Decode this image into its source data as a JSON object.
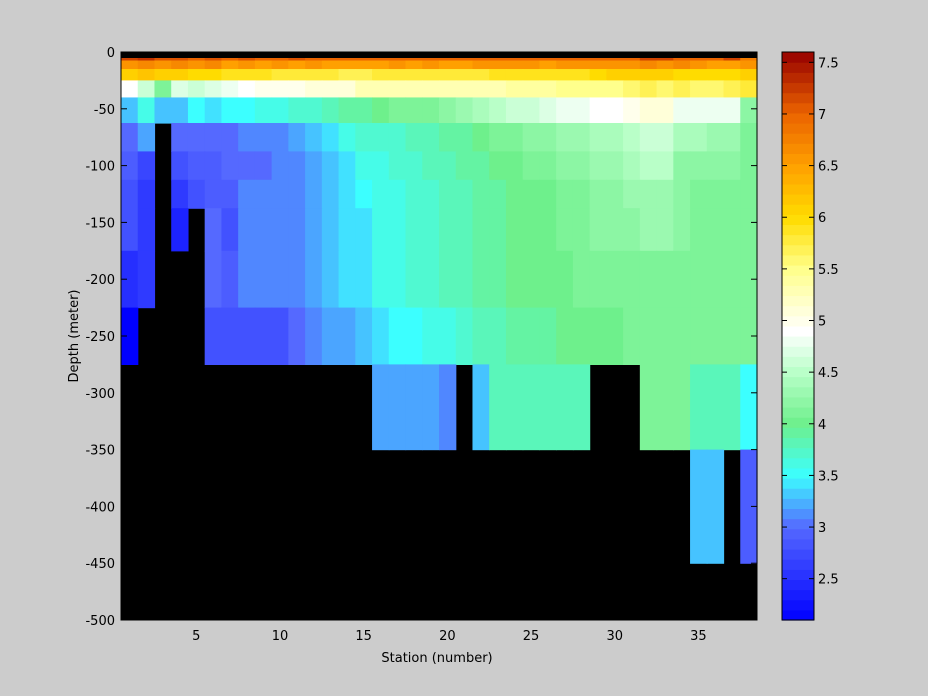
{
  "chart_data": {
    "type": "heatmap",
    "xlabel": "Station (number)",
    "ylabel": "Depth (meter)",
    "xlim": [
      1,
      38
    ],
    "ylim": [
      -500,
      0
    ],
    "xticks": [
      5,
      10,
      15,
      20,
      25,
      30,
      35
    ],
    "yticks": [
      0,
      -50,
      -100,
      -150,
      -200,
      -250,
      -300,
      -350,
      -400,
      -450,
      -500
    ],
    "colorbar": {
      "range": [
        2.1,
        7.6
      ],
      "ticks": [
        2.5,
        3,
        3.5,
        4,
        4.5,
        5,
        5.5,
        6,
        6.5,
        7,
        7.5
      ],
      "colormap": "jet-like (blue-cyan-green-white-yellow-orange-darkred)"
    },
    "missing_color": "#000000",
    "background_color": "#cccccc",
    "depth_rows": [
      -5,
      -10,
      -20,
      -30,
      -50,
      -75,
      -100,
      -125,
      -150,
      -200,
      -250,
      -300,
      -400
    ],
    "row_edges": [
      0,
      -7.5,
      -15,
      -25,
      -40,
      -62.5,
      -87.5,
      -112.5,
      -137.5,
      -175,
      -225,
      -275,
      -350,
      -450
    ],
    "stations": [
      1,
      2,
      3,
      4,
      5,
      6,
      7,
      8,
      9,
      10,
      11,
      12,
      13,
      14,
      15,
      16,
      17,
      18,
      19,
      20,
      21,
      22,
      23,
      24,
      25,
      26,
      27,
      28,
      29,
      30,
      31,
      32,
      33,
      34,
      35,
      36,
      37,
      38
    ],
    "values": [
      [
        7.2,
        7.3,
        7.1,
        7.1,
        7.0,
        7.1,
        7.0,
        7.1,
        7.0,
        7.0,
        7.1,
        7.0,
        7.0,
        7.0,
        7.0,
        7.0,
        7.0,
        7.0,
        7.0,
        7.0,
        7.0,
        7.0,
        7.0,
        7.0,
        7.0,
        7.0,
        7.0,
        7.0,
        7.0,
        7.0,
        7.0,
        7.2,
        7.2,
        7.0,
        7.0,
        7.0,
        7.2,
        6.8
      ],
      [
        6.6,
        6.7,
        6.6,
        6.7,
        6.6,
        6.7,
        6.5,
        6.6,
        6.5,
        6.6,
        6.5,
        6.6,
        6.5,
        6.5,
        6.5,
        6.5,
        6.6,
        6.5,
        6.6,
        6.5,
        6.5,
        6.6,
        6.6,
        6.6,
        6.6,
        6.5,
        6.6,
        6.6,
        6.6,
        6.6,
        6.6,
        6.7,
        6.6,
        6.7,
        6.6,
        6.5,
        6.5,
        6.6
      ],
      [
        6.1,
        6.2,
        6.1,
        6.1,
        6.0,
        6.0,
        5.9,
        5.9,
        5.9,
        5.8,
        5.8,
        5.8,
        5.8,
        5.7,
        5.7,
        5.8,
        5.8,
        5.8,
        5.8,
        5.8,
        5.8,
        5.8,
        5.9,
        5.9,
        5.9,
        5.9,
        5.9,
        5.9,
        6.0,
        6.1,
        6.1,
        6.1,
        6.1,
        6.0,
        6.0,
        6.0,
        6.0,
        6.1
      ],
      [
        4.9,
        4.6,
        4.1,
        4.7,
        4.6,
        4.7,
        4.8,
        4.9,
        5.0,
        5.0,
        5.0,
        5.1,
        5.1,
        5.1,
        5.3,
        5.3,
        5.3,
        5.3,
        5.3,
        5.3,
        5.3,
        5.3,
        5.3,
        5.4,
        5.4,
        5.4,
        5.5,
        5.5,
        5.5,
        5.5,
        5.6,
        5.7,
        5.6,
        5.7,
        5.6,
        5.6,
        5.7,
        5.8
      ],
      [
        3.3,
        3.6,
        3.3,
        3.3,
        3.5,
        3.4,
        3.5,
        3.5,
        3.6,
        3.6,
        3.7,
        3.7,
        3.8,
        3.9,
        3.9,
        4.0,
        4.1,
        4.1,
        4.1,
        4.2,
        4.3,
        4.4,
        4.5,
        4.6,
        4.6,
        4.7,
        4.8,
        4.8,
        4.9,
        4.9,
        5.0,
        5.1,
        5.1,
        4.8,
        4.8,
        4.8,
        4.8,
        4.2
      ],
      [
        3.0,
        3.2,
        null,
        3.0,
        3.0,
        3.0,
        3.0,
        3.1,
        3.1,
        3.1,
        3.2,
        3.3,
        3.4,
        3.6,
        3.7,
        3.7,
        3.7,
        3.8,
        3.8,
        3.9,
        3.9,
        4.0,
        4.1,
        4.1,
        4.2,
        4.2,
        4.3,
        4.3,
        4.4,
        4.4,
        4.5,
        4.6,
        4.6,
        4.4,
        4.4,
        4.3,
        4.3,
        4.1
      ],
      [
        2.9,
        2.7,
        null,
        2.8,
        2.9,
        2.9,
        3.0,
        3.0,
        3.0,
        3.1,
        3.1,
        3.2,
        3.3,
        3.4,
        3.6,
        3.6,
        3.7,
        3.7,
        3.8,
        3.8,
        3.9,
        3.9,
        4.0,
        4.0,
        4.1,
        4.1,
        4.2,
        4.2,
        4.3,
        4.3,
        4.4,
        4.5,
        4.5,
        4.2,
        4.2,
        4.2,
        4.2,
        4.1
      ],
      [
        2.8,
        2.6,
        null,
        2.6,
        2.8,
        2.9,
        2.9,
        3.1,
        3.1,
        3.1,
        3.1,
        3.2,
        3.3,
        3.4,
        3.5,
        3.6,
        3.6,
        3.7,
        3.7,
        3.8,
        3.8,
        3.9,
        3.9,
        4.0,
        4.0,
        4.0,
        4.1,
        4.1,
        4.2,
        4.2,
        4.3,
        4.3,
        4.3,
        4.2,
        4.1,
        4.1,
        4.1,
        4.1
      ],
      [
        2.8,
        2.6,
        null,
        2.4,
        null,
        3.0,
        2.8,
        3.1,
        3.1,
        3.1,
        3.1,
        3.2,
        3.3,
        3.4,
        3.4,
        3.6,
        3.6,
        3.7,
        3.7,
        3.8,
        3.8,
        3.9,
        3.9,
        4.0,
        4.0,
        4.0,
        4.1,
        4.1,
        4.2,
        4.2,
        4.2,
        4.3,
        4.3,
        4.2,
        4.1,
        4.1,
        4.1,
        4.1
      ],
      [
        2.5,
        2.6,
        null,
        null,
        null,
        3.0,
        2.9,
        3.1,
        3.1,
        3.1,
        3.1,
        3.2,
        3.3,
        3.4,
        3.4,
        3.6,
        3.6,
        3.7,
        3.7,
        3.8,
        3.8,
        3.9,
        3.9,
        4.0,
        4.0,
        4.0,
        4.0,
        4.1,
        4.1,
        4.1,
        4.1,
        4.1,
        4.1,
        4.1,
        4.1,
        4.1,
        4.1,
        4.1
      ],
      [
        2.1,
        null,
        null,
        null,
        null,
        2.8,
        2.8,
        2.8,
        2.8,
        2.8,
        3.0,
        3.1,
        3.2,
        3.2,
        3.3,
        3.4,
        3.5,
        3.5,
        3.6,
        3.6,
        3.7,
        3.8,
        3.8,
        3.9,
        3.9,
        3.9,
        4.0,
        4.0,
        4.0,
        4.0,
        4.1,
        4.1,
        4.1,
        4.1,
        4.1,
        4.1,
        4.1,
        4.1
      ],
      [
        null,
        null,
        null,
        null,
        null,
        null,
        null,
        null,
        null,
        null,
        null,
        null,
        null,
        null,
        null,
        3.2,
        3.2,
        3.2,
        3.2,
        3.1,
        null,
        3.3,
        3.8,
        3.8,
        3.8,
        3.8,
        3.8,
        3.8,
        null,
        null,
        null,
        4.1,
        4.1,
        4.1,
        3.8,
        3.8,
        3.8,
        3.5
      ],
      [
        null,
        null,
        null,
        null,
        null,
        null,
        null,
        null,
        null,
        null,
        null,
        null,
        null,
        null,
        null,
        null,
        null,
        null,
        null,
        null,
        null,
        null,
        null,
        null,
        null,
        null,
        null,
        null,
        null,
        null,
        null,
        null,
        null,
        null,
        3.3,
        3.3,
        null,
        2.9
      ]
    ]
  }
}
